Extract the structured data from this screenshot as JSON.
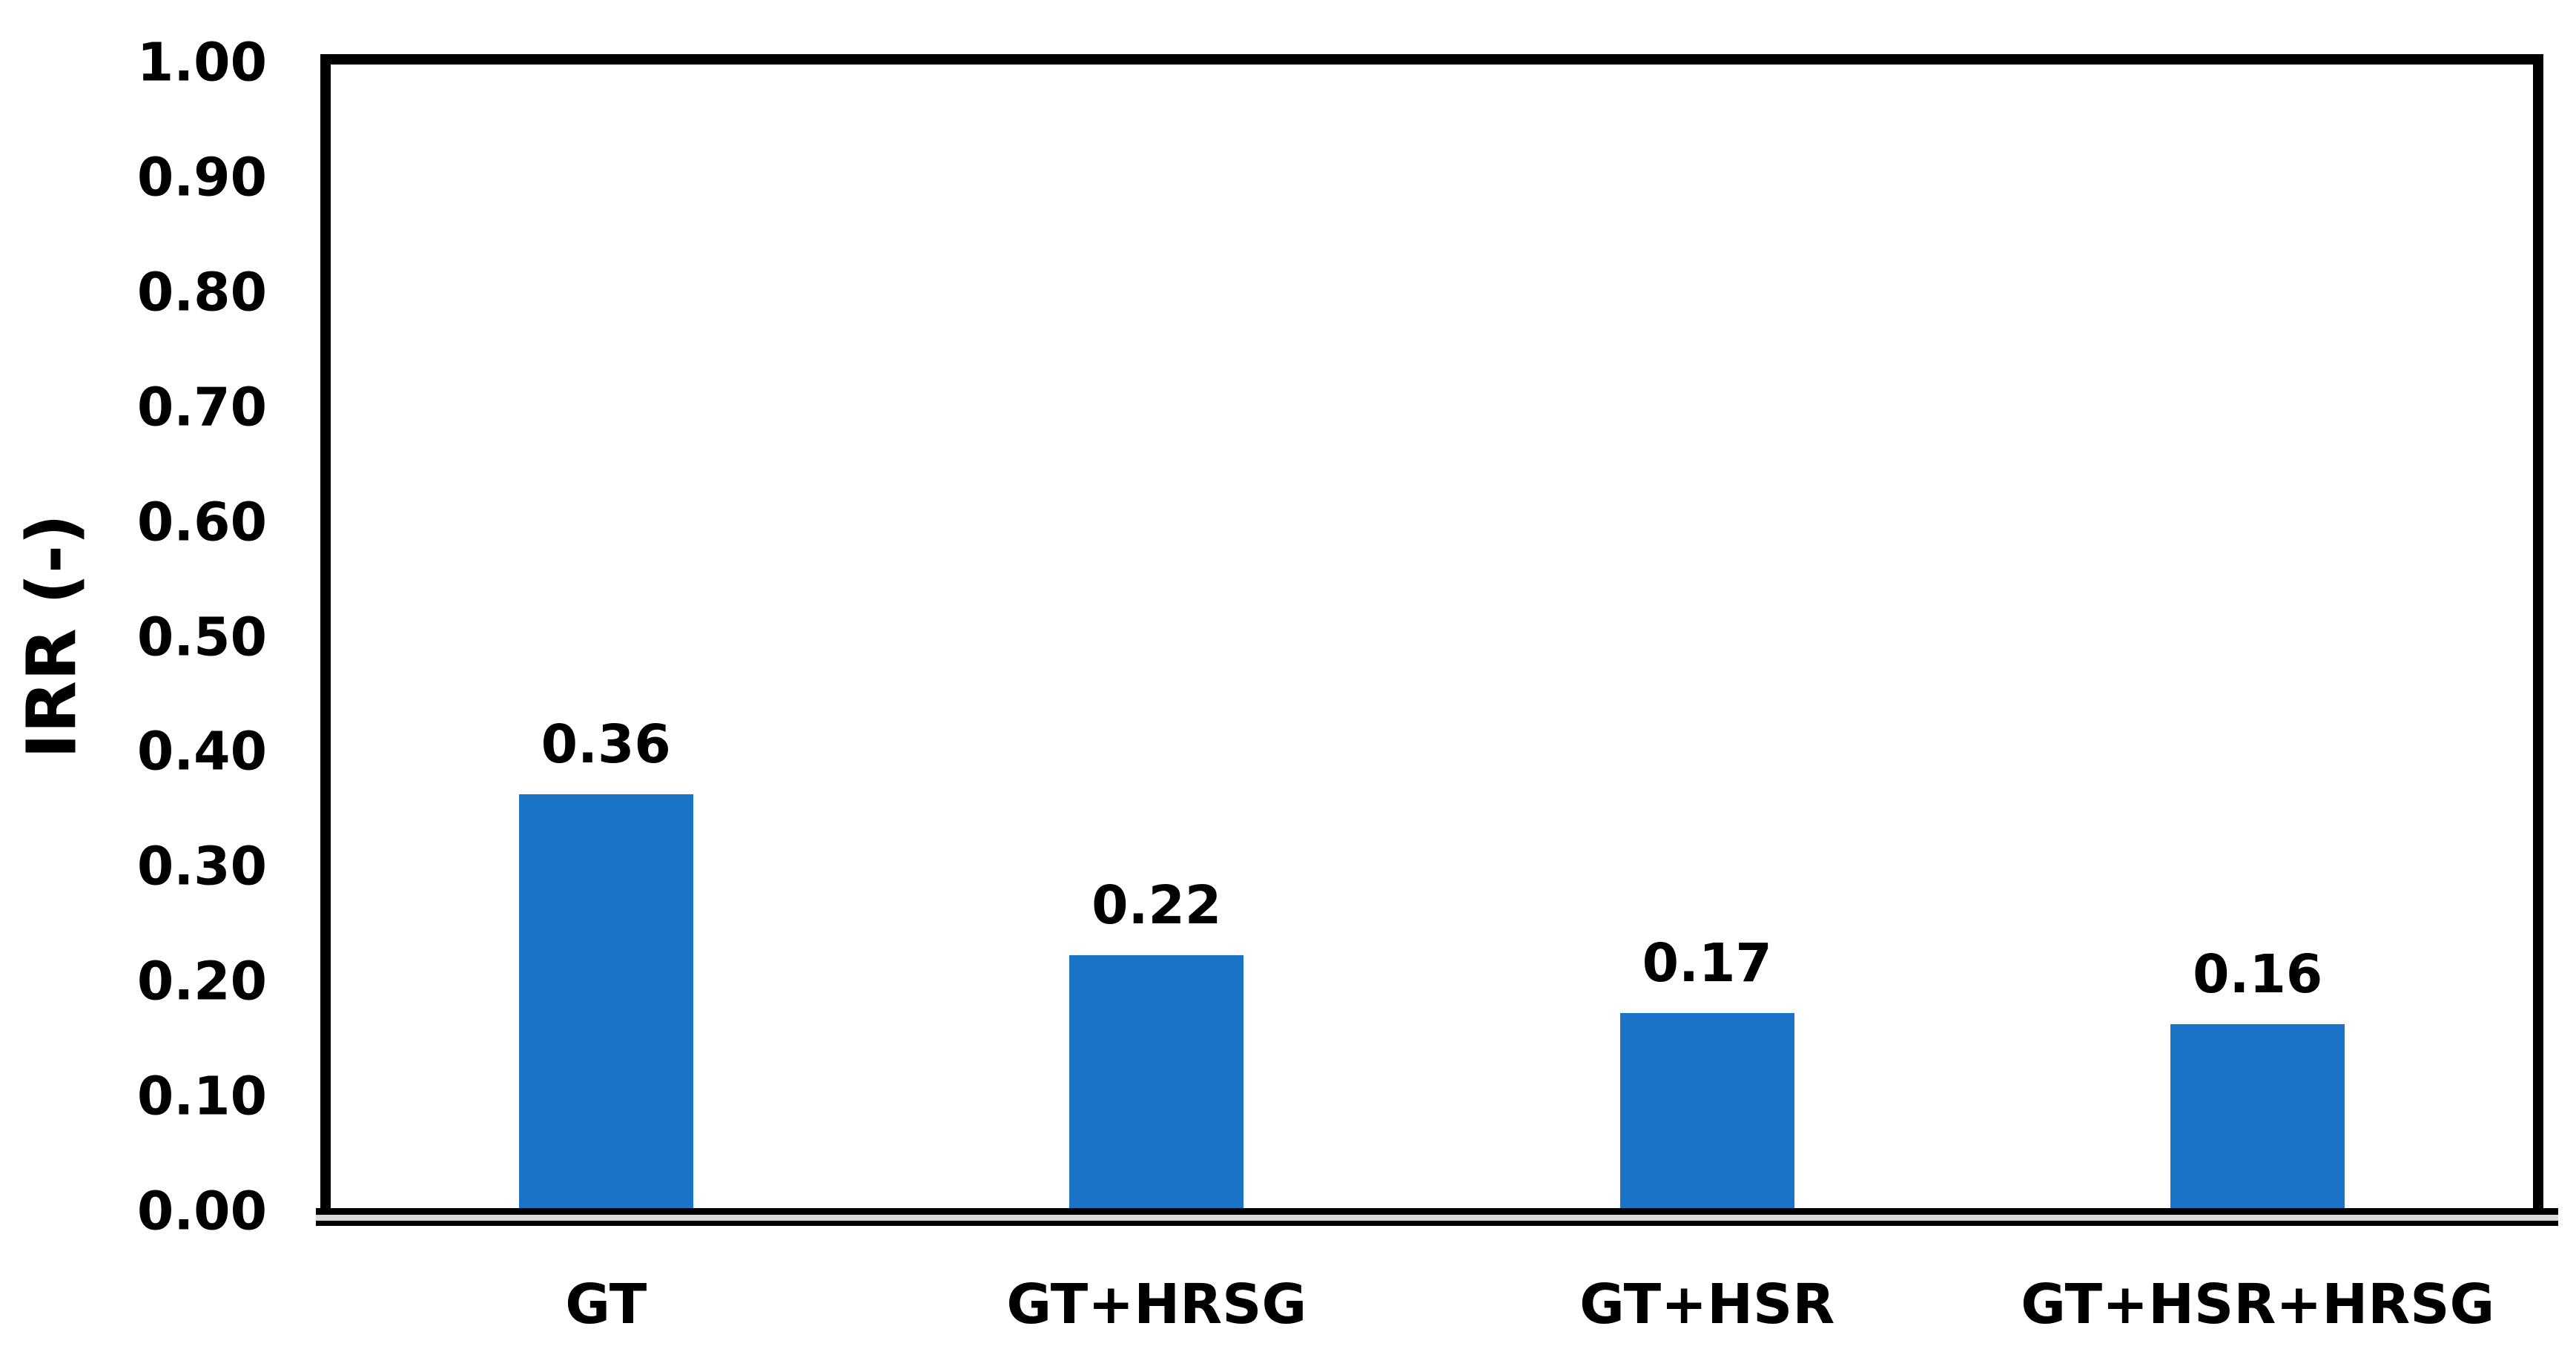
{
  "chart_data": {
    "type": "bar",
    "categories": [
      "GT",
      "GT+HRSG",
      "GT+HSR",
      "GT+HSR+HRSG"
    ],
    "values": [
      0.36,
      0.22,
      0.17,
      0.16
    ],
    "data_labels": [
      "0.36",
      "0.22",
      "0.17",
      "0.16"
    ],
    "ylabel": "IRR (-)",
    "xlabel": "",
    "ylim": [
      0.0,
      1.0
    ],
    "ytick_step": 0.1,
    "ytick_labels": [
      "0.00",
      "0.10",
      "0.20",
      "0.30",
      "0.40",
      "0.50",
      "0.60",
      "0.70",
      "0.80",
      "0.90",
      "1.00"
    ],
    "grid": "off",
    "legend": "none",
    "bar_color": "#1B73C8",
    "axis_color": "#000000",
    "axis_gap_color": "#d9d9d9"
  }
}
